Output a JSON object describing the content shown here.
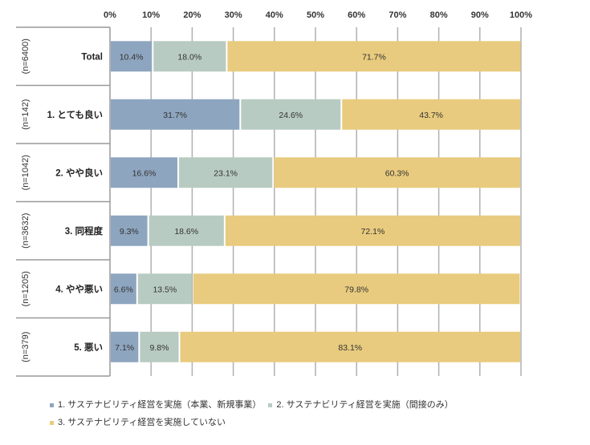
{
  "chart_data": {
    "type": "bar",
    "orientation": "horizontal",
    "stacked": true,
    "xlim": [
      0,
      100
    ],
    "x_ticks": [
      "0%",
      "10%",
      "20%",
      "30%",
      "40%",
      "50%",
      "60%",
      "70%",
      "80%",
      "90%",
      "100%"
    ],
    "categories": [
      "Total",
      "1. とても良い",
      "2. やや良い",
      "3. 同程度",
      "4. やや悪い",
      "5. 悪い"
    ],
    "n_labels": [
      "(n=6400)",
      "(n=142)",
      "(n=1042)",
      "(n=3632)",
      "(n=1205)",
      "(n=379)"
    ],
    "series": [
      {
        "name": "1. サステナビリティ経営を実施（本業、新規事業）",
        "color": "#8ea5bf",
        "values": [
          10.4,
          31.7,
          16.6,
          9.3,
          6.6,
          7.1
        ]
      },
      {
        "name": "2. サステナビリティ経営を実施（間接のみ）",
        "color": "#b8cbc2",
        "values": [
          18.0,
          24.6,
          23.1,
          18.6,
          13.5,
          9.8
        ]
      },
      {
        "name": "3. サステナビリティ経営を実施していない",
        "color": "#e8cb7e",
        "values": [
          71.7,
          43.7,
          60.3,
          72.1,
          79.8,
          83.1
        ]
      }
    ],
    "legend_position": "bottom"
  }
}
